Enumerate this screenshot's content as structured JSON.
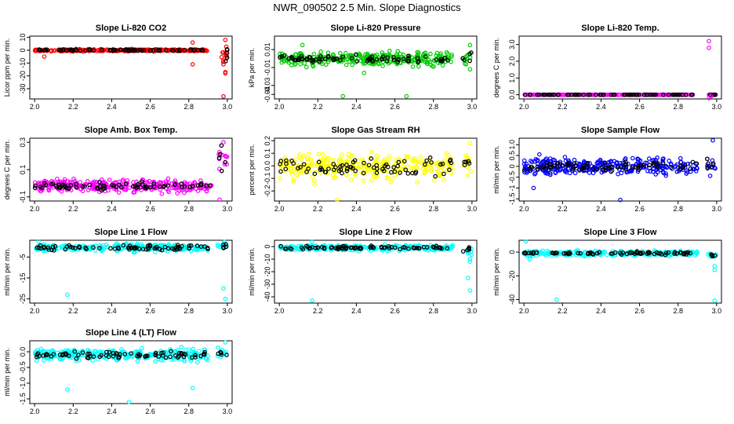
{
  "page_title": "NWR_090502  2.5 Min. Slope Diagnostics",
  "point_color_overlay": "#000000",
  "chart_data": [
    {
      "type": "scatter",
      "title": "Slope Li-820 CO2",
      "ylabel": "Licor ppm per min.",
      "color": "#ff0000",
      "xlim": [
        2.0,
        3.0
      ],
      "ylim": [
        -38,
        11
      ],
      "xticks": [
        2.0,
        2.2,
        2.4,
        2.6,
        2.8,
        3.0
      ],
      "yticks": [
        -30,
        -20,
        -10,
        0,
        10
      ],
      "cluster_range": [
        2.0,
        2.9
      ],
      "cluster_center": 0,
      "cluster_spread": 0.6,
      "tail_range": [
        2.97,
        3.0
      ],
      "tail_center": -5,
      "tail_spread": 8,
      "outliers": [
        {
          "x": 2.05,
          "y": -5
        },
        {
          "x": 2.82,
          "y": -11
        },
        {
          "x": 2.82,
          "y": 6
        },
        {
          "x": 2.98,
          "y": -8
        },
        {
          "x": 2.98,
          "y": -11
        },
        {
          "x": 2.99,
          "y": -17
        },
        {
          "x": 2.99,
          "y": -18
        },
        {
          "x": 2.98,
          "y": -36
        },
        {
          "x": 2.99,
          "y": 8
        }
      ]
    },
    {
      "type": "scatter",
      "title": "Slope Li-820 Pressure",
      "ylabel": "kPa per min.",
      "color": "#00cc00",
      "xlim": [
        2.0,
        3.0
      ],
      "ylim": [
        -0.045,
        0.025
      ],
      "xticks": [
        2.0,
        2.2,
        2.4,
        2.6,
        2.8,
        3.0
      ],
      "yticks": [
        -0.04,
        -0.03,
        -0.01,
        0.01
      ],
      "cluster_range": [
        2.0,
        2.9
      ],
      "cluster_center": 0,
      "cluster_spread": 0.005,
      "tail_range": [
        2.95,
        3.0
      ],
      "tail_center": 0,
      "tail_spread": 0.006,
      "outliers": [
        {
          "x": 2.33,
          "y": -0.042
        },
        {
          "x": 2.66,
          "y": -0.042
        },
        {
          "x": 2.44,
          "y": -0.016
        },
        {
          "x": 2.12,
          "y": 0.015
        },
        {
          "x": 2.99,
          "y": -0.012
        },
        {
          "x": 2.99,
          "y": 0.015
        }
      ]
    },
    {
      "type": "scatter",
      "title": "Slope Li-820 Temp.",
      "ylabel": "degrees C per min.",
      "color": "#ff00ff",
      "xlim": [
        2.0,
        3.0
      ],
      "ylim": [
        -0.25,
        3.5
      ],
      "xticks": [
        2.0,
        2.2,
        2.4,
        2.6,
        2.8,
        3.0
      ],
      "yticks": [
        0.0,
        1.0,
        2.0,
        3.0
      ],
      "ytick_labels": [
        "0.0",
        "1.0",
        "2.0",
        "3.0"
      ],
      "cluster_range": [
        2.0,
        2.88
      ],
      "cluster_center": 0,
      "cluster_spread": 0.0,
      "tail_range": [
        2.96,
        3.0
      ],
      "tail_center": 0,
      "tail_spread": 0.0,
      "outliers": [
        {
          "x": 2.96,
          "y": 3.2
        },
        {
          "x": 2.96,
          "y": 2.8
        },
        {
          "x": 2.96,
          "y": -0.2
        },
        {
          "x": 2.97,
          "y": -0.1
        }
      ]
    },
    {
      "type": "scatter",
      "title": "Slope Amb. Box Temp.",
      "ylabel": "degrees C per min.",
      "color": "#ff00ff",
      "xlim": [
        2.0,
        3.0
      ],
      "ylim": [
        -0.13,
        0.33
      ],
      "xticks": [
        2.0,
        2.2,
        2.4,
        2.6,
        2.8,
        3.0
      ],
      "yticks": [
        -0.1,
        0.1,
        0.3
      ],
      "ytick_labels": [
        "-0.1",
        "0.1",
        "0.3"
      ],
      "cluster_range": [
        2.0,
        2.92
      ],
      "cluster_center": -0.02,
      "cluster_spread": 0.03,
      "tail_range": [
        2.95,
        3.0
      ],
      "tail_center": 0.18,
      "tail_spread": 0.06,
      "outliers": [
        {
          "x": 2.96,
          "y": -0.12
        },
        {
          "x": 2.98,
          "y": 0.3
        },
        {
          "x": 2.99,
          "y": 0.2
        }
      ]
    },
    {
      "type": "scatter",
      "title": "Slope Gas Stream RH",
      "ylabel": "percent per min.",
      "color": "#ffff00",
      "xlim": [
        2.0,
        3.0
      ],
      "ylim": [
        -0.28,
        0.22
      ],
      "xticks": [
        2.0,
        2.2,
        2.4,
        2.6,
        2.8,
        3.0
      ],
      "yticks": [
        -0.2,
        -0.1,
        0.0,
        0.1,
        0.2
      ],
      "ytick_labels": [
        "-0.2",
        "-0.1",
        "0.0",
        "0.1",
        "0.2"
      ],
      "cluster_range": [
        2.0,
        2.9
      ],
      "cluster_center": 0.0,
      "cluster_spread": 0.08,
      "tail_range": [
        2.95,
        3.0
      ],
      "tail_center": 0.02,
      "tail_spread": 0.06,
      "outliers": [
        {
          "x": 2.3,
          "y": -0.27
        },
        {
          "x": 2.99,
          "y": 0.18
        }
      ]
    },
    {
      "type": "scatter",
      "title": "Slope Sample Flow",
      "ylabel": "ml/min per min.",
      "color": "#0000ff",
      "xlim": [
        2.0,
        3.0
      ],
      "ylim": [
        -1.6,
        1.3
      ],
      "xticks": [
        2.0,
        2.2,
        2.4,
        2.6,
        2.8,
        3.0
      ],
      "yticks": [
        -1.5,
        -1.0,
        -0.5,
        0.0,
        0.5,
        1.0
      ],
      "ytick_labels": [
        "-1.5",
        "-1",
        "-0.5",
        "0",
        "0.5",
        "1.0"
      ],
      "cluster_range": [
        2.0,
        2.9
      ],
      "cluster_center": 0.0,
      "cluster_spread": 0.25,
      "tail_range": [
        2.95,
        3.0
      ],
      "tail_center": 0.0,
      "tail_spread": 0.3,
      "outliers": [
        {
          "x": 2.5,
          "y": -1.55
        },
        {
          "x": 2.98,
          "y": 1.2
        },
        {
          "x": 2.05,
          "y": -1.0
        },
        {
          "x": 2.08,
          "y": 0.55
        }
      ]
    },
    {
      "type": "scatter",
      "title": "Slope Line 1 Flow",
      "ylabel": "ml/min per min.",
      "color": "#00ffff",
      "xlim": [
        2.0,
        3.0
      ],
      "ylim": [
        -27,
        3
      ],
      "xticks": [
        2.0,
        2.2,
        2.4,
        2.6,
        2.8,
        3.0
      ],
      "yticks": [
        -25,
        -15,
        -5
      ],
      "ytick_labels": [
        "-25",
        "-15",
        "-5"
      ],
      "cluster_range": [
        2.0,
        2.9
      ],
      "cluster_center": -0.5,
      "cluster_spread": 1.2,
      "tail_range": [
        2.95,
        3.0
      ],
      "tail_center": 0.0,
      "tail_spread": 1.2,
      "outliers": [
        {
          "x": 2.17,
          "y": -23
        },
        {
          "x": 2.99,
          "y": -25
        },
        {
          "x": 2.98,
          "y": -20
        },
        {
          "x": 2.02,
          "y": 2.5
        }
      ]
    },
    {
      "type": "scatter",
      "title": "Slope Line 2 Flow",
      "ylabel": "ml/min per min.",
      "color": "#00ffff",
      "xlim": [
        2.0,
        3.0
      ],
      "ylim": [
        -45,
        5
      ],
      "xticks": [
        2.0,
        2.2,
        2.4,
        2.6,
        2.8,
        3.0
      ],
      "yticks": [
        -40,
        -30,
        -20,
        -10,
        0
      ],
      "cluster_range": [
        2.0,
        2.9
      ],
      "cluster_center": -1,
      "cluster_spread": 1.5,
      "tail_range": [
        2.95,
        3.0
      ],
      "tail_center": -3,
      "tail_spread": 2,
      "outliers": [
        {
          "x": 2.17,
          "y": -43
        },
        {
          "x": 2.99,
          "y": -35
        },
        {
          "x": 2.98,
          "y": -25
        },
        {
          "x": 2.99,
          "y": -10
        },
        {
          "x": 2.99,
          "y": -12
        },
        {
          "x": 2.17,
          "y": 4
        }
      ]
    },
    {
      "type": "scatter",
      "title": "Slope Line 3 Flow",
      "ylabel": "ml/min per min.",
      "color": "#00ffff",
      "xlim": [
        2.0,
        3.0
      ],
      "ylim": [
        -43,
        10
      ],
      "xticks": [
        2.0,
        2.2,
        2.4,
        2.6,
        2.8,
        3.0
      ],
      "yticks": [
        -40,
        -20,
        0
      ],
      "cluster_range": [
        2.0,
        2.9
      ],
      "cluster_center": -1,
      "cluster_spread": 1.5,
      "tail_range": [
        2.95,
        3.0
      ],
      "tail_center": -3,
      "tail_spread": 2,
      "outliers": [
        {
          "x": 2.17,
          "y": -40
        },
        {
          "x": 2.99,
          "y": -41
        },
        {
          "x": 2.99,
          "y": -12
        },
        {
          "x": 2.99,
          "y": -15
        },
        {
          "x": 2.01,
          "y": 9
        },
        {
          "x": 2.03,
          "y": -6
        }
      ]
    },
    {
      "type": "scatter",
      "title": "Slope Line 4 (LT) Flow",
      "ylabel": "ml/min per min.",
      "color": "#00ffff",
      "xlim": [
        2.0,
        3.0
      ],
      "ylim": [
        -1.65,
        0.35
      ],
      "xticks": [
        2.0,
        2.2,
        2.4,
        2.6,
        2.8,
        3.0
      ],
      "yticks": [
        -1.5,
        -1.0,
        -0.5,
        0.0
      ],
      "ytick_labels": [
        "-1.5",
        "-1.0",
        "-0.5",
        "0.0"
      ],
      "cluster_range": [
        2.0,
        2.9
      ],
      "cluster_center": -0.1,
      "cluster_spread": 0.13,
      "tail_range": [
        2.95,
        3.0
      ],
      "tail_center": -0.05,
      "tail_spread": 0.15,
      "outliers": [
        {
          "x": 2.17,
          "y": -1.2
        },
        {
          "x": 2.49,
          "y": -1.6
        },
        {
          "x": 2.82,
          "y": -1.15
        },
        {
          "x": 2.99,
          "y": 0.3
        }
      ]
    }
  ]
}
